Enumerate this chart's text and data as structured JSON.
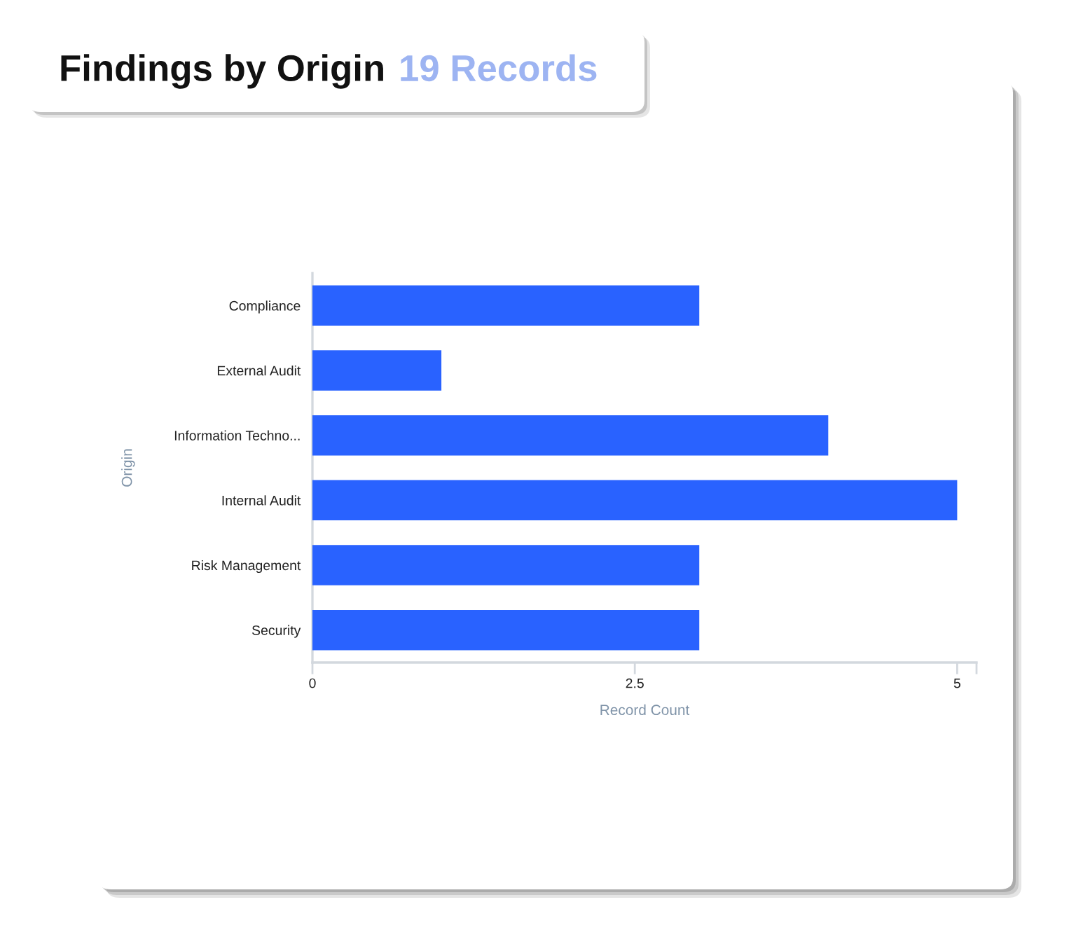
{
  "chart_data": {
    "type": "bar",
    "orientation": "horizontal",
    "title": "Findings by Origin",
    "subtitle": "19 Records",
    "xlabel": "Record Count",
    "ylabel": "Origin",
    "categories": [
      "Compliance",
      "External Audit",
      "Information Techno...",
      "Internal Audit",
      "Risk Management",
      "Security"
    ],
    "values": [
      3,
      1,
      4,
      5,
      3,
      3
    ],
    "color": "#2962ff",
    "xlim": [
      0,
      5.15
    ],
    "xticks": [
      0,
      2.5,
      5,
      {
        "value": 5.15,
        "label": null
      }
    ],
    "grid": false,
    "legend": false
  }
}
